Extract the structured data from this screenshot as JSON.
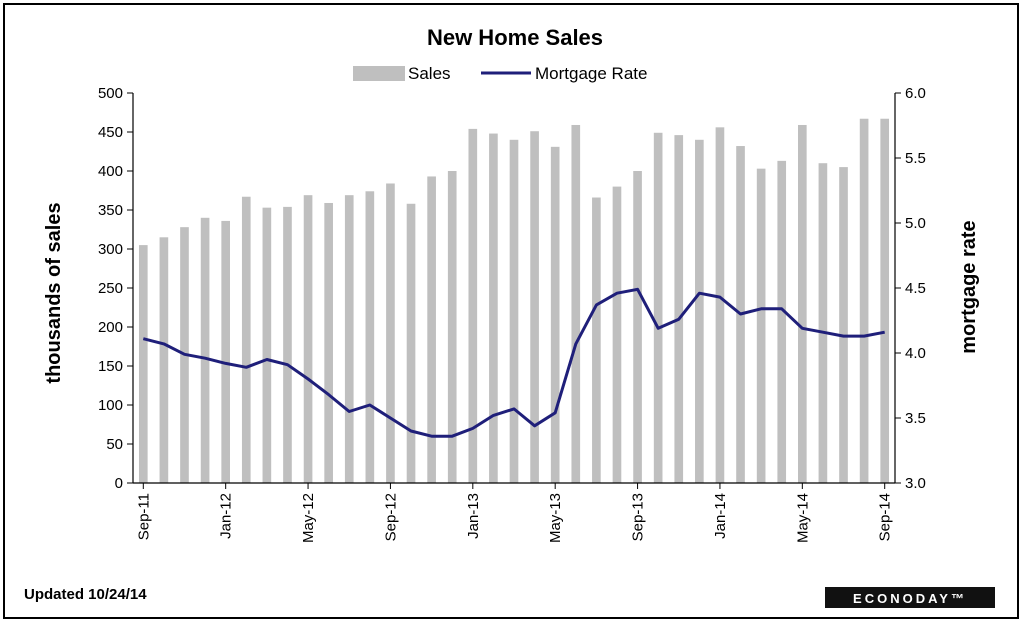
{
  "chart_data": {
    "type": "bar+line",
    "title": "New Home Sales",
    "legend": [
      "Sales",
      "Mortgage Rate"
    ],
    "legend_position": "top",
    "ylabel_left": "thousands of sales",
    "ylabel_right": "mortgage rate",
    "ylim_left": [
      0,
      500
    ],
    "ylim_right": [
      3.0,
      6.0
    ],
    "yticks_left": [
      "0",
      "50",
      "100",
      "150",
      "200",
      "250",
      "300",
      "350",
      "400",
      "450",
      "500"
    ],
    "yticks_right": [
      "3.0",
      "3.5",
      "4.0",
      "4.5",
      "5.0",
      "5.5",
      "6.0"
    ],
    "xtick_labels": [
      "Sep-11",
      "Jan-12",
      "May-12",
      "Sep-12",
      "Jan-13",
      "May-13",
      "Sep-13",
      "Jan-14",
      "May-14",
      "Sep-14"
    ],
    "xtick_indices": [
      0,
      4,
      8,
      12,
      16,
      20,
      24,
      28,
      32,
      36
    ],
    "categories": [
      "Sep-11",
      "Oct-11",
      "Nov-11",
      "Dec-11",
      "Jan-12",
      "Feb-12",
      "Mar-12",
      "Apr-12",
      "May-12",
      "Jun-12",
      "Jul-12",
      "Aug-12",
      "Sep-12",
      "Oct-12",
      "Nov-12",
      "Dec-12",
      "Jan-13",
      "Feb-13",
      "Mar-13",
      "Apr-13",
      "May-13",
      "Jun-13",
      "Jul-13",
      "Aug-13",
      "Sep-13",
      "Oct-13",
      "Nov-13",
      "Dec-13",
      "Jan-14",
      "Feb-14",
      "Mar-14",
      "Apr-14",
      "May-14",
      "Jun-14",
      "Jul-14",
      "Aug-14",
      "Sep-14"
    ],
    "series": [
      {
        "name": "Sales",
        "type": "bar",
        "axis": "left",
        "color": "#bfbfbf",
        "values": [
          305,
          315,
          328,
          340,
          336,
          367,
          353,
          354,
          369,
          359,
          369,
          374,
          384,
          358,
          393,
          400,
          454,
          448,
          440,
          451,
          431,
          459,
          366,
          380,
          400,
          449,
          446,
          440,
          456,
          432,
          403,
          413,
          459,
          410,
          405,
          467,
          467
        ]
      },
      {
        "name": "Mortgage Rate",
        "type": "line",
        "axis": "right",
        "color": "#1f1f7a",
        "values": [
          4.11,
          4.07,
          3.99,
          3.96,
          3.92,
          3.89,
          3.95,
          3.91,
          3.8,
          3.68,
          3.55,
          3.6,
          3.5,
          3.4,
          3.36,
          3.36,
          3.42,
          3.52,
          3.57,
          3.44,
          3.54,
          4.07,
          4.37,
          4.46,
          4.49,
          4.19,
          4.26,
          4.46,
          4.43,
          4.3,
          4.34,
          4.34,
          4.19,
          4.16,
          4.13,
          4.13,
          4.16
        ]
      }
    ]
  },
  "footer": {
    "updated": "Updated 10/24/14",
    "brand": "ECONODAY™"
  }
}
